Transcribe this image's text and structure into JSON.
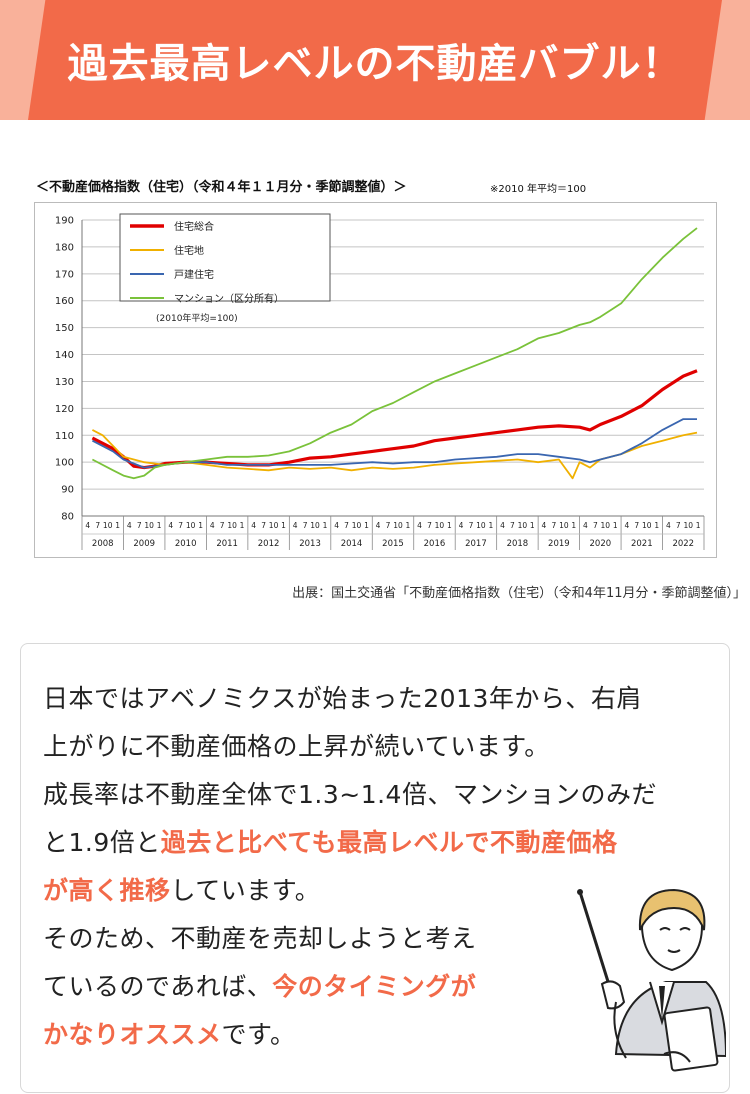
{
  "banner": {
    "title": "過去最高レベルの不動産バブル！"
  },
  "chart": {
    "title": "＜不動産価格指数（住宅）（令和４年１１月分・季節調整値）＞",
    "note": "※2010 年平均＝100",
    "source": "出展：国土交通省「不動産価格指数（住宅）（令和4年11月分・季節調整値）」"
  },
  "chart_data": {
    "type": "line",
    "title": "＜不動産価格指数（住宅）（令和４年１１月分・季節調整値）＞",
    "ylim": [
      80,
      190
    ],
    "yticks": [
      80,
      90,
      100,
      110,
      120,
      130,
      140,
      150,
      160,
      170,
      180,
      190
    ],
    "month_ticks": [
      "4",
      "7",
      "10",
      "1"
    ],
    "years": [
      "2008",
      "2009",
      "2010",
      "2011",
      "2012",
      "2013",
      "2014",
      "2015",
      "2016",
      "2017",
      "2018",
      "2019",
      "2020",
      "2021",
      "2022"
    ],
    "legend_note": "(2010年平均=100)",
    "legend_position": "top-left",
    "grid": true,
    "series": [
      {
        "name": "住宅総合",
        "color": "#e00000",
        "points": [
          [
            2008.25,
            109
          ],
          [
            2008.75,
            105
          ],
          [
            2009.0,
            102
          ],
          [
            2009.25,
            98.5
          ],
          [
            2009.5,
            98
          ],
          [
            2009.75,
            98.5
          ],
          [
            2010.0,
            99.5
          ],
          [
            2010.5,
            100
          ],
          [
            2011.0,
            100
          ],
          [
            2011.5,
            99.5
          ],
          [
            2012.0,
            99
          ],
          [
            2012.5,
            99
          ],
          [
            2013.0,
            100
          ],
          [
            2013.5,
            101.5
          ],
          [
            2014.0,
            102
          ],
          [
            2014.5,
            103
          ],
          [
            2015.0,
            104
          ],
          [
            2015.5,
            105
          ],
          [
            2016.0,
            106
          ],
          [
            2016.5,
            108
          ],
          [
            2017.0,
            109
          ],
          [
            2017.5,
            110
          ],
          [
            2018.0,
            111
          ],
          [
            2018.5,
            112
          ],
          [
            2019.0,
            113
          ],
          [
            2019.5,
            113.5
          ],
          [
            2020.0,
            113
          ],
          [
            2020.25,
            112
          ],
          [
            2020.5,
            114
          ],
          [
            2021.0,
            117
          ],
          [
            2021.5,
            121
          ],
          [
            2022.0,
            127
          ],
          [
            2022.5,
            132
          ],
          [
            2022.83,
            134
          ]
        ]
      },
      {
        "name": "住宅地",
        "color": "#f0b000",
        "points": [
          [
            2008.25,
            112
          ],
          [
            2008.5,
            110
          ],
          [
            2009.0,
            102
          ],
          [
            2009.5,
            100
          ],
          [
            2010.0,
            99
          ],
          [
            2010.5,
            100
          ],
          [
            2011.0,
            99
          ],
          [
            2011.5,
            98
          ],
          [
            2012.0,
            97.5
          ],
          [
            2012.5,
            97
          ],
          [
            2013.0,
            98
          ],
          [
            2013.5,
            97.5
          ],
          [
            2014.0,
            98
          ],
          [
            2014.5,
            97
          ],
          [
            2015.0,
            98
          ],
          [
            2015.5,
            97.5
          ],
          [
            2016.0,
            98
          ],
          [
            2016.5,
            99
          ],
          [
            2017.0,
            99.5
          ],
          [
            2017.5,
            100
          ],
          [
            2018.0,
            100.5
          ],
          [
            2018.5,
            101
          ],
          [
            2019.0,
            100
          ],
          [
            2019.5,
            101
          ],
          [
            2019.83,
            94
          ],
          [
            2020.0,
            100
          ],
          [
            2020.25,
            98
          ],
          [
            2020.5,
            101
          ],
          [
            2021.0,
            103
          ],
          [
            2021.5,
            106
          ],
          [
            2022.0,
            108
          ],
          [
            2022.5,
            110
          ],
          [
            2022.83,
            111
          ]
        ]
      },
      {
        "name": "戸建住宅",
        "color": "#3a66b0",
        "points": [
          [
            2008.25,
            108
          ],
          [
            2008.75,
            104
          ],
          [
            2009.0,
            101
          ],
          [
            2009.5,
            98
          ],
          [
            2010.0,
            99
          ],
          [
            2010.5,
            100
          ],
          [
            2011.0,
            100
          ],
          [
            2011.5,
            99
          ],
          [
            2012.0,
            99
          ],
          [
            2012.5,
            99
          ],
          [
            2013.0,
            99
          ],
          [
            2013.5,
            99
          ],
          [
            2014.0,
            99
          ],
          [
            2014.5,
            99.5
          ],
          [
            2015.0,
            100
          ],
          [
            2015.5,
            99.5
          ],
          [
            2016.0,
            100
          ],
          [
            2016.5,
            100
          ],
          [
            2017.0,
            101
          ],
          [
            2017.5,
            101.5
          ],
          [
            2018.0,
            102
          ],
          [
            2018.5,
            103
          ],
          [
            2019.0,
            103
          ],
          [
            2019.5,
            102
          ],
          [
            2020.0,
            101
          ],
          [
            2020.25,
            100
          ],
          [
            2020.5,
            101
          ],
          [
            2021.0,
            103
          ],
          [
            2021.5,
            107
          ],
          [
            2022.0,
            112
          ],
          [
            2022.5,
            116
          ],
          [
            2022.83,
            116
          ]
        ]
      },
      {
        "name": "マンション（区分所有）",
        "color": "#7ac23a",
        "points": [
          [
            2008.25,
            101
          ],
          [
            2008.75,
            97
          ],
          [
            2009.0,
            95
          ],
          [
            2009.25,
            94
          ],
          [
            2009.5,
            95
          ],
          [
            2009.75,
            98
          ],
          [
            2010.0,
            99
          ],
          [
            2010.5,
            100
          ],
          [
            2011.0,
            101
          ],
          [
            2011.5,
            102
          ],
          [
            2012.0,
            102
          ],
          [
            2012.5,
            102.5
          ],
          [
            2013.0,
            104
          ],
          [
            2013.5,
            107
          ],
          [
            2014.0,
            111
          ],
          [
            2014.5,
            114
          ],
          [
            2015.0,
            119
          ],
          [
            2015.5,
            122
          ],
          [
            2016.0,
            126
          ],
          [
            2016.5,
            130
          ],
          [
            2017.0,
            133
          ],
          [
            2017.5,
            136
          ],
          [
            2018.0,
            139
          ],
          [
            2018.5,
            142
          ],
          [
            2019.0,
            146
          ],
          [
            2019.5,
            148
          ],
          [
            2020.0,
            151
          ],
          [
            2020.25,
            152
          ],
          [
            2020.5,
            154
          ],
          [
            2021.0,
            159
          ],
          [
            2021.5,
            168
          ],
          [
            2022.0,
            176
          ],
          [
            2022.5,
            183
          ],
          [
            2022.83,
            187
          ]
        ]
      }
    ]
  },
  "description": {
    "line1": "日本ではアベノミクスが始まった2013年から、右肩",
    "line2": "上がりに不動産価格の上昇が続いています。",
    "line3": "成長率は不動産全体で1.3~1.4倍、マンションのみだ",
    "line4_plain": "と1.9倍と",
    "line4_em": "過去と比べても最高レベルで不動産価格",
    "line5_em": "が高く推移",
    "line5_plain": "しています。",
    "line6": "そのため、不動産を売却しようと考え",
    "line7_plain": "ているのであれば、",
    "line7_em": "今のタイミングが",
    "line8_em": "かなりオススメ",
    "line8_plain": "です。"
  }
}
